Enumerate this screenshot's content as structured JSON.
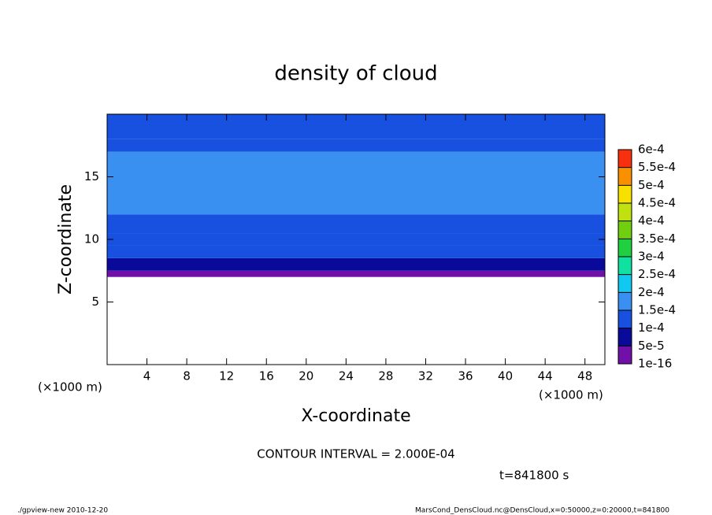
{
  "chart_data": {
    "type": "contour",
    "title": "density of cloud",
    "x_label": "X-coordinate",
    "y_label": "Z-coordinate",
    "x_unit": "(×1000 m)",
    "y_unit": "(×1000 m)",
    "note": "CONTOUR INTERVAL = 2.000E-04",
    "time": "t=841800 s",
    "footer_left": "./gpview-new  2010-12-20",
    "footer_right": "MarsCond_DensCloud.nc@DensCloud,x=0:50000,z=0:20000,t=841800",
    "xlim": [
      0,
      50
    ],
    "ylim": [
      0,
      20
    ],
    "xticks": [
      4,
      8,
      12,
      16,
      20,
      24,
      28,
      32,
      36,
      40,
      44,
      48
    ],
    "yticks": [
      5,
      10,
      15
    ],
    "z_edges": [
      7,
      7.5,
      8.5,
      9.5,
      10.5,
      12,
      17,
      18,
      20
    ],
    "values": [
      3e-05,
      8e-05,
      0.00011,
      0.00013,
      0.00014,
      0.00016,
      0.00014,
      0.00012
    ],
    "levels": [
      {
        "value": 1e-16,
        "label": "1e-16"
      },
      {
        "value": 5e-05,
        "label": "5e-5"
      },
      {
        "value": 0.0001,
        "label": "1e-4"
      },
      {
        "value": 0.00015,
        "label": "1.5e-4"
      },
      {
        "value": 0.0002,
        "label": "2e-4"
      },
      {
        "value": 0.00025,
        "label": "2.5e-4"
      },
      {
        "value": 0.0003,
        "label": "3e-4"
      },
      {
        "value": 0.00035,
        "label": "3.5e-4"
      },
      {
        "value": 0.0004,
        "label": "4e-4"
      },
      {
        "value": 0.00045,
        "label": "4.5e-4"
      },
      {
        "value": 0.0005,
        "label": "5e-4"
      },
      {
        "value": 0.00055,
        "label": "5.5e-4"
      },
      {
        "value": 0.0006,
        "label": "6e-4"
      }
    ],
    "colors": [
      "#7010a8",
      "#0a0a9a",
      "#1850e0",
      "#3a90f0",
      "#10c8f0",
      "#10e0a0",
      "#20d040",
      "#70d010",
      "#c0e010",
      "#f8e000",
      "#f89000",
      "#f83010"
    ],
    "top_color": "#f89090"
  }
}
